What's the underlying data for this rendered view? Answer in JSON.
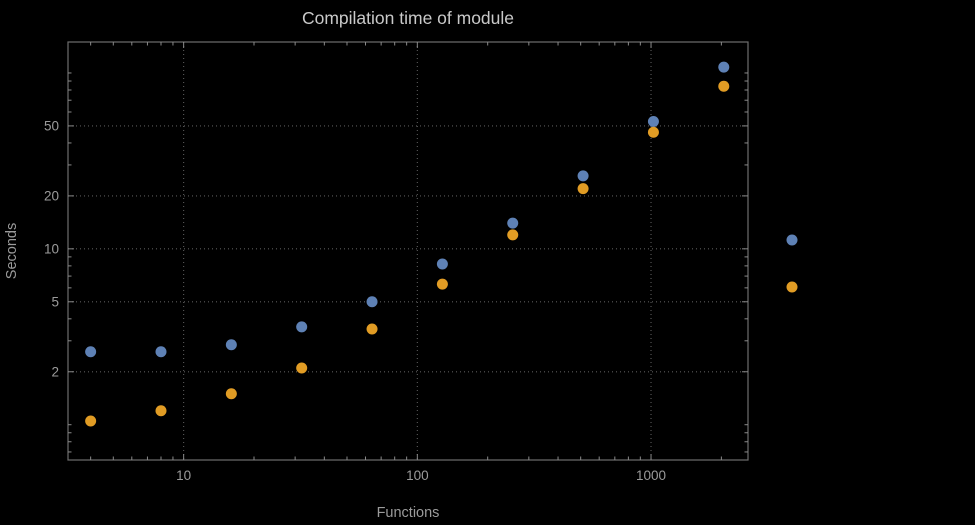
{
  "styles": {
    "background": "#000000",
    "frame_color": "#6e6e6e",
    "grid_color": "#5a5a5a",
    "tick_color": "#8a8a8a",
    "tick_label_color": "#9b9b9b",
    "title_color": "#c9c9c9"
  },
  "chart_data": {
    "type": "scatter",
    "title": "Compilation time of module",
    "xlabel": "Functions",
    "ylabel": "Seconds",
    "x_scale": "log",
    "y_scale": "log",
    "xlim": [
      3.2,
      2600
    ],
    "ylim": [
      0.63,
      150
    ],
    "x_ticks": [
      10,
      100,
      1000
    ],
    "y_ticks": [
      2,
      5,
      10,
      20,
      50
    ],
    "grid": true,
    "legend_position": "right",
    "series": [
      {
        "name": "series-blue",
        "color": "#5E81B5",
        "points": [
          [
            4,
            2.6
          ],
          [
            8,
            2.6
          ],
          [
            16,
            2.85
          ],
          [
            32,
            3.6
          ],
          [
            64,
            5.0
          ],
          [
            128,
            8.2
          ],
          [
            256,
            14
          ],
          [
            512,
            26
          ],
          [
            1024,
            53
          ],
          [
            2048,
            108
          ]
        ]
      },
      {
        "name": "series-orange",
        "color": "#E19C24",
        "points": [
          [
            4,
            1.05
          ],
          [
            8,
            1.2
          ],
          [
            16,
            1.5
          ],
          [
            32,
            2.1
          ],
          [
            64,
            3.5
          ],
          [
            128,
            6.3
          ],
          [
            256,
            12
          ],
          [
            512,
            22
          ],
          [
            1024,
            46
          ],
          [
            2048,
            84
          ]
        ]
      }
    ],
    "legend": {
      "items": [
        {
          "marker_color": "#5E81B5",
          "label": ""
        },
        {
          "marker_color": "#E19C24",
          "label": ""
        }
      ]
    }
  }
}
